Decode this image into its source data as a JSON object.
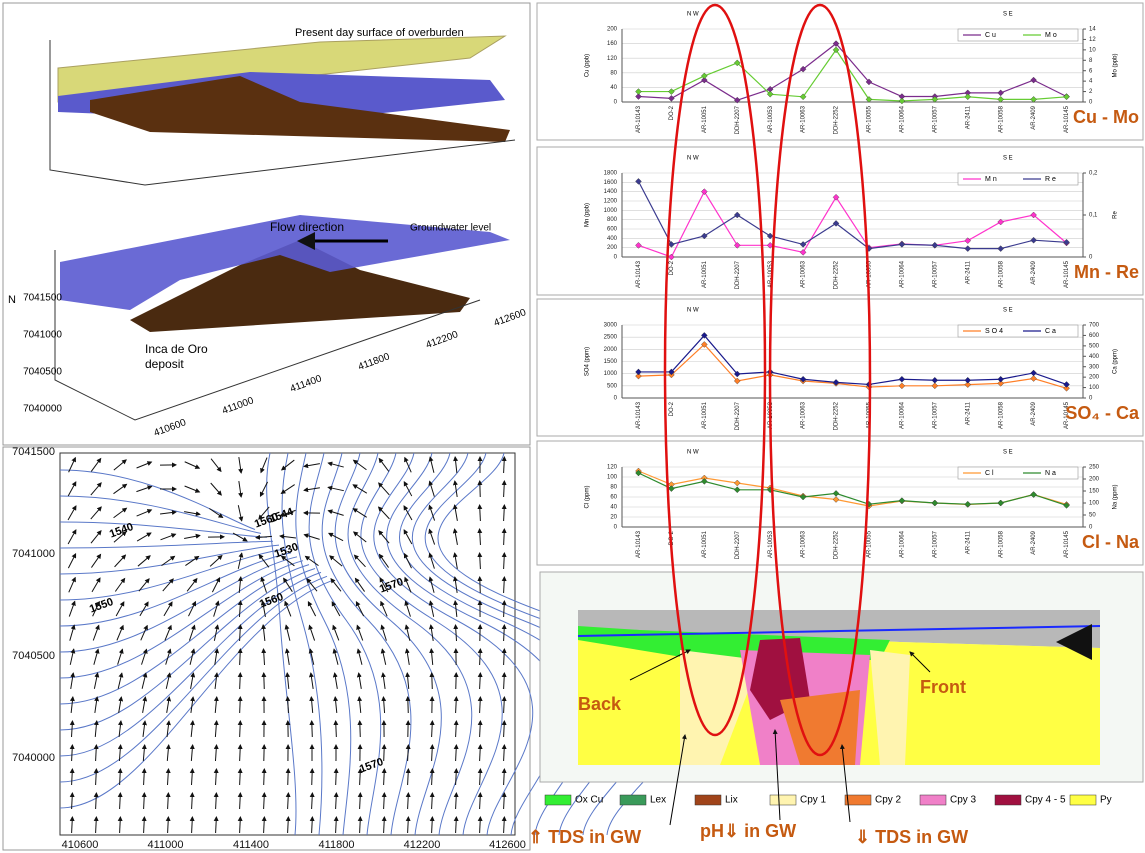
{
  "figure_3d": {
    "surface": "Present day surface of overburden",
    "flow": "Flow direction",
    "groundwater": "Groundwater level",
    "deposit_line1": "Inca de Oro",
    "deposit_line2": "deposit",
    "north": "N",
    "yticks": [
      "7041500",
      "7041000",
      "7040500",
      "7040000"
    ],
    "xticks": [
      "410600",
      "411000",
      "411400",
      "411800",
      "412200",
      "412600"
    ]
  },
  "map": {
    "yticks": [
      "7041500",
      "7041000",
      "7040500",
      "7040000"
    ],
    "xticks": [
      "410600",
      "411000",
      "411400",
      "411800",
      "412200",
      "412600"
    ],
    "contour_labels": [
      "1540",
      "1550",
      "1560",
      "1570",
      "1560",
      "1570",
      "1530",
      "1544"
    ]
  },
  "chart_data": [
    {
      "type": "line",
      "title": "Cu - Mo",
      "left_direction": "N W",
      "right_direction": "S E",
      "ylabel": "Cu (ppb)",
      "y2label": "Mo (ppb)",
      "categories": [
        "AR-10143",
        "DO-2",
        "AR-10051",
        "DDH-2207",
        "AR-10053",
        "AR-10063",
        "DDH-2252",
        "AR-10055",
        "AR-10064",
        "AR-10057",
        "AR-2411",
        "AR-10058",
        "AR-2409",
        "AR-10145"
      ],
      "ylim": [
        0,
        200
      ],
      "yticks": [
        0,
        40,
        80,
        120,
        160,
        200
      ],
      "y2lim": [
        0,
        14
      ],
      "y2ticks": [
        0,
        2,
        4,
        6,
        8,
        10,
        12,
        14
      ],
      "series": [
        {
          "name": "Cu",
          "color": "#7b2c8c",
          "values": [
            15,
            10,
            60,
            5,
            35,
            90,
            160,
            55,
            15,
            15,
            25,
            25,
            60,
            15
          ]
        },
        {
          "name": "Mo",
          "color": "#66cc33",
          "axis": "y2",
          "values": [
            2,
            2,
            5,
            7.5,
            1.5,
            1,
            10,
            0.5,
            0.2,
            0.5,
            1,
            0.5,
            0.5,
            1
          ]
        }
      ]
    },
    {
      "type": "line",
      "title": "Mn - Re",
      "left_direction": "N W",
      "right_direction": "S E",
      "ylabel": "Mn (ppb)",
      "y2label": "Re",
      "categories": [
        "AR-10143",
        "DO-2",
        "AR-10051",
        "DDH-2207",
        "AR-10053",
        "AR-10063",
        "DDH-2252",
        "AR-10055",
        "AR-10064",
        "AR-10057",
        "AR-2411",
        "AR-10058",
        "AR-2409",
        "AR-10145"
      ],
      "ylim": [
        0,
        1800
      ],
      "yticks": [
        0,
        200,
        400,
        600,
        800,
        1000,
        1200,
        1400,
        1600,
        1800
      ],
      "y2lim": [
        0,
        0.2
      ],
      "y2ticks": [
        0,
        {
          "value": 0.1,
          "label": "0,1"
        },
        {
          "value": 0.2,
          "label": "0,2"
        }
      ],
      "series": [
        {
          "name": "Mn",
          "color": "#ff33cc",
          "values": [
            250,
            0,
            1400,
            250,
            250,
            100,
            1280,
            200,
            280,
            250,
            350,
            750,
            900,
            300
          ]
        },
        {
          "name": "Re",
          "color": "#3b3b8f",
          "axis": "y2",
          "values": [
            0.18,
            0.03,
            0.05,
            0.1,
            0.05,
            0.03,
            0.08,
            0.02,
            0.03,
            0.028,
            0.02,
            0.02,
            0.04,
            0.035
          ]
        }
      ]
    },
    {
      "type": "line",
      "title": "SO₄ - Ca",
      "left_direction": "N W",
      "right_direction": "S E",
      "ylabel": "SO4 (ppm)",
      "y2label": "Ca (ppm)",
      "categories": [
        "AR-10143",
        "DO-2",
        "AR-10051",
        "DDH-2207",
        "AR-10053",
        "AR-10063",
        "DDH-2252",
        "AR-10055",
        "AR-10064",
        "AR-10057",
        "AR-2411",
        "AR-10058",
        "AR-2409",
        "AR-10145"
      ],
      "ylim": [
        0,
        3000
      ],
      "yticks": [
        0,
        500,
        1000,
        1500,
        2000,
        2500,
        3000
      ],
      "y2lim": [
        0,
        700
      ],
      "y2ticks": [
        0,
        100,
        200,
        300,
        400,
        500,
        600,
        700
      ],
      "series": [
        {
          "name": "SO4",
          "color": "#ff7f27",
          "values": [
            900,
            950,
            2200,
            700,
            950,
            700,
            600,
            450,
            500,
            500,
            550,
            600,
            800,
            400
          ]
        },
        {
          "name": "Ca",
          "color": "#1a1a8c",
          "axis": "y2",
          "values": [
            250,
            250,
            600,
            230,
            250,
            180,
            150,
            130,
            180,
            170,
            170,
            180,
            240,
            130
          ]
        }
      ]
    },
    {
      "type": "line",
      "title": "Cl - Na",
      "left_direction": "N W",
      "right_direction": "S E",
      "ylabel": "Cl (ppm)",
      "y2label": "Na (ppm)",
      "categories": [
        "AR-10143",
        "DO-2",
        "AR-10051",
        "DDH-2207",
        "AR-10053",
        "AR-10063",
        "DDH-2252",
        "AR-10055",
        "AR-10064",
        "AR-10057",
        "AR-2411",
        "AR-10058",
        "AR-2409",
        "AR-10145"
      ],
      "ylim": [
        0,
        120
      ],
      "yticks": [
        0,
        20,
        40,
        60,
        80,
        100,
        120
      ],
      "y2lim": [
        0,
        250
      ],
      "y2ticks": [
        0,
        50,
        100,
        150,
        200,
        250
      ],
      "series": [
        {
          "name": "Cl",
          "color": "#ff9933",
          "values": [
            112,
            85,
            98,
            88,
            78,
            62,
            55,
            42,
            52,
            48,
            45,
            48,
            65,
            45
          ]
        },
        {
          "name": "Na",
          "color": "#2e8b2e",
          "axis": "y2",
          "values": [
            225,
            160,
            190,
            155,
            155,
            125,
            140,
            95,
            110,
            100,
            95,
            100,
            135,
            90
          ]
        }
      ]
    }
  ],
  "cross_section": {
    "back": "Back",
    "front": "Front",
    "legend": [
      {
        "name": "Ox Cu",
        "color": "#33ee33"
      },
      {
        "name": "Lex",
        "color": "#3a9a5a"
      },
      {
        "name": "Lix",
        "color": "#a0441a"
      },
      {
        "name": "Cpy 1",
        "color": "#fff4b0"
      },
      {
        "name": "Cpy 2",
        "color": "#f07a30"
      },
      {
        "name": "Cpy 3",
        "color": "#f080c8"
      },
      {
        "name": "Cpy 4 - 5",
        "color": "#a01040"
      },
      {
        "name": "Py",
        "color": "#ffff44"
      }
    ],
    "notes": [
      "⇑ TDS in GW",
      "pH⇓ in GW",
      "⇓ TDS in GW"
    ]
  }
}
